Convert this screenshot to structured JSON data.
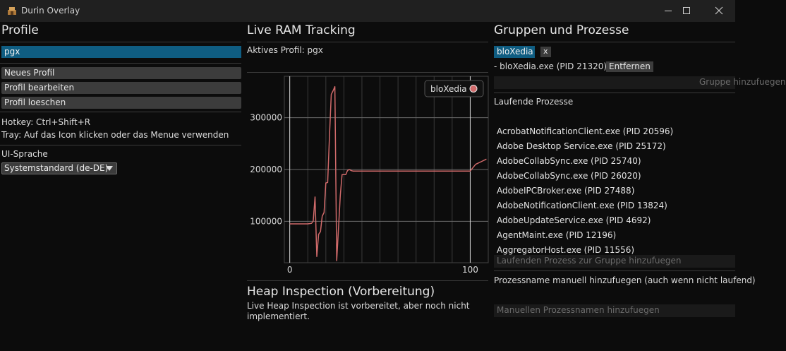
{
  "window": {
    "title": "Durin Overlay"
  },
  "profile": {
    "heading": "Profile",
    "selected": "pgx",
    "buttons": {
      "new": "Neues Profil",
      "edit": "Profil bearbeiten",
      "delete": "Profil loeschen"
    },
    "hotkey": "Hotkey: Ctrl+Shift+R",
    "tray": "Tray: Auf das Icon klicken oder das Menue verwenden",
    "language_label": "UI-Sprache",
    "language_value": "Systemstandard (de-DE)"
  },
  "ram": {
    "heading": "Live RAM Tracking",
    "active_profile": "Aktives Profil: pgx"
  },
  "chart_data": {
    "type": "line",
    "title": "",
    "xlabel": "",
    "ylabel": "",
    "xlim": [
      -3,
      110
    ],
    "ylim": [
      20000,
      380000
    ],
    "xticks": [
      "0",
      "100"
    ],
    "yticks": [
      "100000",
      "200000",
      "300000"
    ],
    "grid": true,
    "legend": "top-right",
    "colors": {
      "series": "#d06a6a",
      "grid": "#3a3a3a",
      "axis_line": "#dddddd"
    },
    "series": [
      {
        "name": "bloXedia",
        "x": [
          0,
          2,
          4,
          6,
          8,
          10,
          12,
          13,
          14,
          15,
          16,
          17,
          18,
          19,
          20,
          21,
          22,
          23,
          24,
          25,
          26,
          27,
          28,
          29,
          30,
          31,
          32,
          33,
          34,
          35,
          36,
          37,
          38,
          39,
          40,
          42,
          45,
          50,
          60,
          70,
          80,
          90,
          95,
          100,
          103,
          106,
          109
        ],
        "values": [
          95000,
          95000,
          95000,
          95000,
          95000,
          95000,
          96000,
          100000,
          147000,
          32000,
          75000,
          80000,
          110000,
          117000,
          174000,
          175000,
          262000,
          345000,
          352000,
          360000,
          24000,
          85000,
          150000,
          190000,
          190000,
          190000,
          198000,
          200000,
          198000,
          197000,
          197000,
          197000,
          197000,
          197000,
          197000,
          197000,
          197000,
          197000,
          197000,
          197000,
          197000,
          197000,
          197000,
          197000,
          210000,
          215000,
          220000
        ]
      }
    ]
  },
  "heap": {
    "heading": "Heap Inspection (Vorbereitung)",
    "line1": "Live Heap Inspection ist vorbereitet, aber noch nicht",
    "line2": "implementiert."
  },
  "groups": {
    "heading": "Gruppen und Prozesse",
    "group_name": "bloXedia",
    "remove_group_label": "x",
    "member": "- bloXedia.exe (PID 21320)",
    "remove_label": "Entfernen",
    "group_input_placeholder": "Gruppe hinzufuegen",
    "running_label": "Laufende Prozesse",
    "processes": [
      "AcrobatNotificationClient.exe (PID 20596)",
      "Adobe Desktop Service.exe (PID 25172)",
      "AdobeCollabSync.exe (PID 25740)",
      "AdobeCollabSync.exe (PID 26020)",
      "AdobeIPCBroker.exe (PID 27488)",
      "AdobeNotificationClient.exe (PID 13824)",
      "AdobeUpdateService.exe (PID 4692)",
      "AgentMaint.exe (PID 12196)",
      "AggregatorHost.exe (PID 11556)"
    ],
    "add_running_placeholder": "Laufenden Prozess zur Gruppe hinzufuegen",
    "manual_label": "Prozessname manuell hinzufuegen (auch wenn nicht laufend)",
    "manual_placeholder": "Manuellen Prozessnamen hinzufuegen"
  }
}
